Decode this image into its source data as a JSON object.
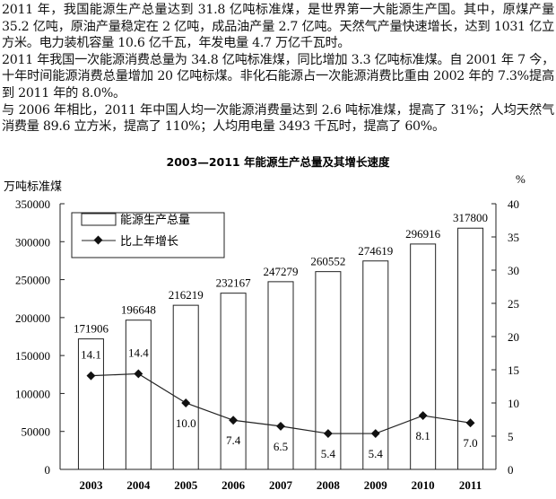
{
  "paragraphs": [
    "2011 年，我国能源生产总量达到 31.8 亿吨标准煤，是世界第一大能源生产国。其中，原煤产量 35.2 亿吨，原油产量稳定在 2 亿吨，成品油产量 2.7 亿吨。天然气产量快速增长，达到 1031 亿立方米。电力装机容量 10.6 亿千瓦，年发电量 4.7 万亿千瓦时。",
    "2011 年我国一次能源消费总量为 34.8 亿吨标准煤，同比增加 3.3 亿吨标准煤。自 2001 年 7 今，十年时间能源消费总量增加 20 亿吨标煤。非化石能源占一次能源消费比重由 2002 年的 7.3%提高到 2011 年的 8.0%。",
    "与 2006 年相比，2011 年中国人均一次能源消费量达到 2.6 吨标准煤，提高了 31%；人均天然气消费量 89.6 立方米，提高了 110%；人均用电量 3493 千瓦时，提高了 60%。"
  ],
  "chart_data": {
    "type": "bar",
    "title": "2003—2011 年能源生产总量及其增长速度",
    "ylabel": "万吨标准煤",
    "y2label": "%",
    "categories": [
      "2003",
      "2004",
      "2005",
      "2006",
      "2007",
      "2008",
      "2009",
      "2010",
      "2011"
    ],
    "ylim": [
      0,
      350000
    ],
    "y2lim": [
      0,
      40
    ],
    "yticks": [
      "0",
      "50000",
      "100000",
      "150000",
      "200000",
      "250000",
      "300000",
      "350000"
    ],
    "y2ticks": [
      "0",
      "5",
      "10",
      "15",
      "20",
      "25",
      "30",
      "35",
      "40"
    ],
    "legend_position": "top-left",
    "series": [
      {
        "name": "能源生产总量",
        "type": "bar",
        "axis": "left",
        "values": [
          171906,
          196648,
          216219,
          232167,
          247279,
          260552,
          274619,
          296916,
          317800
        ],
        "labels": [
          "171906",
          "196648",
          "216219",
          "232167",
          "247279",
          "260552",
          "274619",
          "296916",
          "317800"
        ]
      },
      {
        "name": "比上年增长",
        "type": "line",
        "axis": "right",
        "values": [
          14.1,
          14.4,
          10.0,
          7.4,
          6.5,
          5.4,
          5.4,
          8.1,
          7.0
        ],
        "labels": [
          "14.1",
          "14.4",
          "10.0",
          "7.4",
          "6.5",
          "5.4",
          "5.4",
          "8.1",
          "7.0"
        ]
      }
    ]
  }
}
